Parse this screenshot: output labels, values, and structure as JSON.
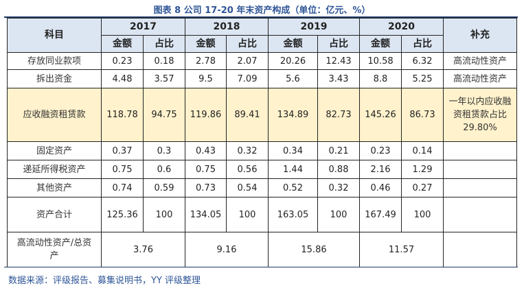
{
  "title": "图表 8 公司 17-20 年末资产构成（单位：亿元、%）",
  "header": {
    "item": "科目",
    "years": [
      "2017",
      "2018",
      "2019",
      "2020"
    ],
    "amount": "金额",
    "ratio": "占比",
    "note": "补充"
  },
  "rows": [
    {
      "name": "存放同业款项",
      "values": [
        "0.23",
        "0.18",
        "2.78",
        "2.07",
        "20.26",
        "12.43",
        "10.58",
        "6.32"
      ],
      "note": "高流动性资产"
    },
    {
      "name": "拆出资金",
      "values": [
        "4.48",
        "3.57",
        "9.5",
        "7.09",
        "5.6",
        "3.43",
        "8.8",
        "5.25"
      ],
      "note": "高流动性资产"
    },
    {
      "name": "应收融资租赁款",
      "values": [
        "118.78",
        "94.75",
        "119.86",
        "89.41",
        "134.89",
        "82.73",
        "145.26",
        "86.73"
      ],
      "note": "一年以内应收融资租赁款占比 29.80%"
    },
    {
      "name": "固定资产",
      "values": [
        "0.37",
        "0.3",
        "0.43",
        "0.32",
        "0.34",
        "0.21",
        "0.23",
        "0.14"
      ],
      "note": ""
    },
    {
      "name": "递延所得税资产",
      "values": [
        "0.75",
        "0.6",
        "0.75",
        "0.56",
        "1.44",
        "0.88",
        "2.16",
        "1.29"
      ],
      "note": ""
    },
    {
      "name": "其他资产",
      "values": [
        "0.74",
        "0.59",
        "0.73",
        "0.54",
        "0.52",
        "0.32",
        "0.46",
        "0.27"
      ],
      "note": ""
    },
    {
      "name": "资产合计",
      "values": [
        "125.36",
        "100",
        "134.05",
        "100",
        "163.05",
        "100",
        "167.49",
        "100"
      ],
      "note": ""
    }
  ],
  "ratio_row": {
    "name": "高流动性资产/总资产",
    "values": [
      "3.76",
      "9.16",
      "15.86",
      "11.57"
    ],
    "note": ""
  },
  "source": "数据来源：评级报告、募集说明书，YY 评级整理"
}
